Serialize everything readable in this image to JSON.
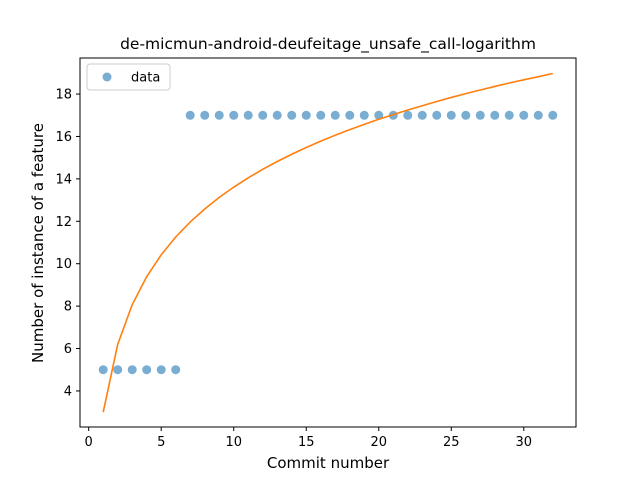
{
  "chart_data": {
    "type": "scatter",
    "title": "de-micmun-android-deufeitage_unsafe_call-logarithm",
    "xlabel": "Commit number",
    "ylabel": "Number of instance of a feature",
    "xlim": [
      -0.6,
      33.6
    ],
    "ylim": [
      2.3,
      19.7
    ],
    "xticks": [
      0,
      5,
      10,
      15,
      20,
      25,
      30
    ],
    "yticks": [
      4,
      6,
      8,
      10,
      12,
      14,
      16,
      18
    ],
    "grid": false,
    "legend_position": "top-left",
    "series": [
      {
        "name": "data",
        "kind": "scatter",
        "color": "#1f77b4",
        "x": [
          1,
          2,
          3,
          4,
          5,
          6,
          7,
          8,
          9,
          10,
          11,
          12,
          13,
          14,
          15,
          16,
          17,
          18,
          19,
          20,
          21,
          22,
          23,
          24,
          25,
          26,
          27,
          28,
          29,
          30,
          31,
          32
        ],
        "y": [
          5,
          5,
          5,
          5,
          5,
          5,
          17,
          17,
          17,
          17,
          17,
          17,
          17,
          17,
          17,
          17,
          17,
          17,
          17,
          17,
          17,
          17,
          17,
          17,
          17,
          17,
          17,
          17,
          17,
          17,
          17,
          17
        ]
      },
      {
        "kind": "line",
        "color": "#ff7f0e",
        "x": [
          1,
          2,
          3,
          4,
          5,
          6,
          7,
          8,
          9,
          10,
          11,
          12,
          13,
          14,
          15,
          16,
          17,
          18,
          19,
          20,
          21,
          22,
          23,
          24,
          25,
          26,
          27,
          28,
          29,
          30,
          31,
          32
        ],
        "y": [
          3.0,
          6.2,
          8.07,
          9.39,
          10.42,
          11.26,
          11.97,
          12.58,
          13.13,
          13.61,
          14.05,
          14.45,
          14.82,
          15.16,
          15.48,
          15.78,
          16.06,
          16.32,
          16.57,
          16.81,
          17.03,
          17.25,
          17.45,
          17.65,
          17.84,
          18.02,
          18.19,
          18.36,
          18.52,
          18.67,
          18.82,
          18.97
        ]
      }
    ]
  }
}
